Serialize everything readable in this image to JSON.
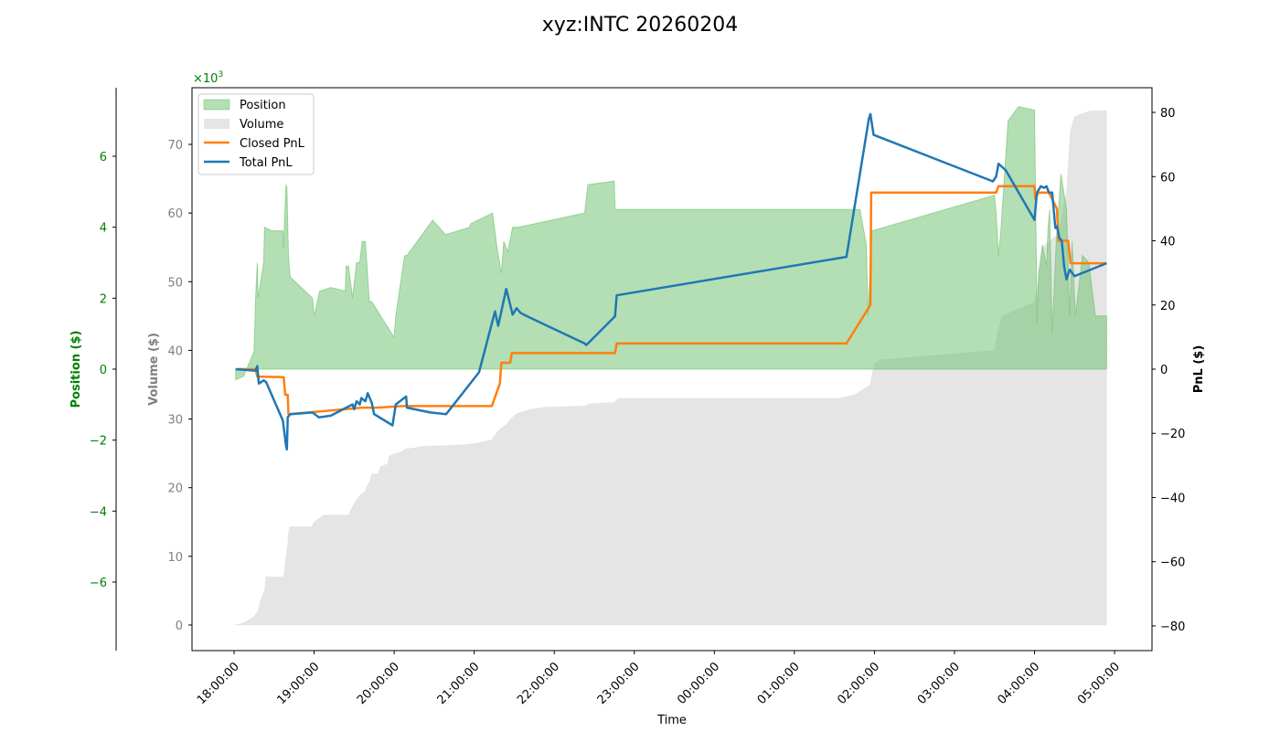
{
  "chart_data": {
    "type": "area+line",
    "title": "xyz:INTC 20260204",
    "xlabel": "Time",
    "x_ticks": [
      "18:00:00",
      "19:00:00",
      "20:00:00",
      "21:00:00",
      "22:00:00",
      "23:00:00",
      "00:00:00",
      "01:00:00",
      "02:00:00",
      "03:00:00",
      "04:00:00",
      "05:00:00"
    ],
    "x_unit": "hours since 18:00:00",
    "x_range": [
      -0.52,
      11.45
    ],
    "axes": {
      "position": {
        "label": "Position ($)",
        "color": "#008000",
        "ticks": [
          -6,
          -4,
          -2,
          0,
          2,
          4,
          6
        ],
        "tick_labels": [
          "−6",
          "−4",
          "−2",
          "0",
          "2",
          "4",
          "6"
        ],
        "range": [
          -7.85,
          7.85
        ],
        "multiplier": "×10³"
      },
      "volume": {
        "label": "Volume ($)",
        "color": "#808080",
        "ticks": [
          0,
          10,
          20,
          30,
          40,
          50,
          60,
          70
        ],
        "range": [
          -3.7,
          78.3
        ],
        "unit": "thousands"
      },
      "pnl": {
        "label": "PnL ($)",
        "color": "#000000",
        "ticks": [
          -80,
          -60,
          -40,
          -20,
          0,
          20,
          40,
          60,
          80
        ],
        "tick_labels": [
          "−80",
          "−60",
          "−40",
          "−20",
          "0",
          "20",
          "40",
          "60",
          "80"
        ],
        "range": [
          -87.7,
          87.7
        ]
      }
    },
    "legend": [
      {
        "label": "Position",
        "kind": "area",
        "color": "#6abf69"
      },
      {
        "label": "Volume",
        "kind": "area",
        "color": "#d3d3d3"
      },
      {
        "label": "Closed PnL",
        "kind": "line",
        "color": "#ff7f0e"
      },
      {
        "label": "Total PnL",
        "kind": "line",
        "color": "#1f77b4"
      }
    ],
    "series": [
      {
        "name": "Volume",
        "axis": "volume",
        "type": "area",
        "color": "#d3d3d3",
        "x": [
          0.02,
          0.07,
          0.15,
          0.25,
          0.3,
          0.33,
          0.38,
          0.4,
          0.62,
          0.64,
          0.67,
          0.68,
          0.7,
          0.97,
          1.0,
          1.12,
          1.43,
          1.47,
          1.52,
          1.58,
          1.64,
          1.66,
          1.7,
          1.72,
          1.8,
          1.83,
          1.92,
          1.94,
          2.02,
          2.1,
          2.13,
          2.27,
          2.33,
          2.52,
          2.6,
          2.93,
          3.05,
          3.22,
          3.28,
          3.32,
          3.4,
          3.46,
          3.53,
          3.59,
          3.7,
          3.8,
          3.88,
          4.4,
          4.43,
          4.75,
          4.8,
          5.3,
          5.55,
          5.8,
          6.2,
          6.6,
          7.2,
          7.55,
          7.75,
          7.95,
          7.97,
          8.0,
          8.06,
          9.0,
          9.5,
          9.55,
          9.6,
          10.0,
          10.05,
          10.1,
          10.3,
          10.4,
          10.42,
          10.45,
          10.5,
          10.6,
          10.7,
          10.9
        ],
        "y": [
          0.1,
          0.1,
          0.5,
          1.2,
          2.1,
          3.5,
          5.0,
          7.0,
          7.0,
          9.0,
          11.8,
          13.5,
          14.3,
          14.3,
          15.0,
          16.0,
          16.0,
          17.0,
          18.0,
          19.0,
          19.5,
          20.2,
          21.0,
          22.0,
          22.0,
          23.0,
          23.5,
          24.6,
          25.0,
          25.2,
          25.6,
          25.8,
          26.0,
          26.1,
          26.1,
          26.3,
          26.5,
          27.0,
          28.0,
          28.5,
          29.2,
          30.0,
          30.8,
          31.0,
          31.4,
          31.6,
          31.7,
          31.9,
          32.2,
          32.4,
          33.0,
          33.0,
          33.0,
          33.0,
          33.0,
          33.0,
          33.0,
          33.0,
          33.5,
          35.0,
          36.5,
          38.0,
          38.6,
          39.5,
          40.0,
          43.0,
          45.0,
          47.0,
          50.0,
          55.0,
          57.0,
          63.0,
          67.0,
          72.0,
          74.0,
          74.5,
          74.9,
          74.9
        ]
      },
      {
        "name": "Position",
        "axis": "position",
        "type": "area",
        "color": "#6abf69",
        "x": [
          0.02,
          0.12,
          0.25,
          0.27,
          0.29,
          0.3,
          0.37,
          0.38,
          0.47,
          0.61,
          0.62,
          0.63,
          0.65,
          0.66,
          0.68,
          0.7,
          0.98,
          1.0,
          1.07,
          1.21,
          1.39,
          1.4,
          1.43,
          1.48,
          1.53,
          1.57,
          1.6,
          1.64,
          1.69,
          1.72,
          2.0,
          2.02,
          2.13,
          2.16,
          2.48,
          2.64,
          2.66,
          2.94,
          2.96,
          3.23,
          3.28,
          3.34,
          3.37,
          3.42,
          3.48,
          3.55,
          4.38,
          4.42,
          4.75,
          4.76,
          5.4,
          6.5,
          7.65,
          7.82,
          7.9,
          7.92,
          7.97,
          9.5,
          9.52,
          9.55,
          9.58,
          9.64,
          9.67,
          9.8,
          10.0,
          10.02,
          10.03,
          10.05,
          10.1,
          10.15,
          10.17,
          10.19,
          10.22,
          10.27,
          10.33,
          10.4,
          10.44,
          10.47,
          10.51,
          10.6,
          10.68,
          10.76,
          10.9
        ],
        "y": [
          -0.3,
          -0.2,
          0.5,
          2.0,
          3.0,
          2.0,
          3.0,
          4.0,
          3.9,
          3.9,
          3.4,
          4.2,
          5.2,
          5.1,
          3.2,
          2.6,
          2.0,
          1.5,
          2.2,
          2.3,
          2.2,
          2.9,
          2.9,
          2.0,
          3.0,
          3.0,
          3.6,
          3.6,
          1.9,
          1.9,
          0.9,
          1.5,
          3.2,
          3.2,
          4.2,
          3.8,
          3.8,
          4.0,
          4.1,
          4.4,
          3.5,
          2.7,
          3.6,
          3.3,
          4.0,
          4.0,
          4.4,
          5.2,
          5.3,
          4.5,
          4.5,
          4.5,
          4.5,
          4.5,
          3.5,
          1.5,
          3.9,
          4.9,
          4.4,
          3.2,
          3.9,
          6.0,
          7.0,
          7.4,
          7.3,
          3.5,
          1.3,
          2.7,
          3.5,
          2.9,
          4.0,
          4.5,
          1.0,
          3.5,
          5.5,
          4.5,
          1.5,
          3.6,
          1.5,
          3.2,
          3.0,
          1.5,
          1.5
        ]
      },
      {
        "name": "Closed PnL",
        "axis": "pnl",
        "type": "line",
        "color": "#ff7f0e",
        "x": [
          0.02,
          0.27,
          0.29,
          0.62,
          0.64,
          0.67,
          0.68,
          0.7,
          1.6,
          1.65,
          1.7,
          1.75,
          1.8,
          2.1,
          2.2,
          3.22,
          3.32,
          3.34,
          3.45,
          3.47,
          4.42,
          4.76,
          4.78,
          7.65,
          7.95,
          7.96,
          9.52,
          9.55,
          10.0,
          10.01,
          10.05,
          10.18,
          10.22,
          10.28,
          10.3,
          10.42,
          10.45,
          10.5,
          10.9
        ],
        "y": [
          0,
          0,
          -2.3,
          -2.5,
          -8.0,
          -8.0,
          -14.0,
          -14.0,
          -12.0,
          -12.0,
          -12.0,
          -12.0,
          -12.0,
          -11.5,
          -11.5,
          -11.5,
          -4.5,
          2.0,
          2.0,
          5.0,
          5.0,
          5.0,
          8.0,
          8.0,
          20.0,
          55.0,
          55.0,
          57.0,
          57.0,
          53.0,
          55.0,
          55.0,
          53.0,
          50.0,
          40.0,
          40.0,
          33.0,
          33.0,
          33.0
        ]
      },
      {
        "name": "Total PnL",
        "axis": "pnl",
        "type": "line",
        "color": "#1f77b4",
        "x": [
          0.02,
          0.27,
          0.29,
          0.31,
          0.37,
          0.4,
          0.61,
          0.65,
          0.66,
          0.67,
          0.7,
          0.98,
          1.06,
          1.21,
          1.48,
          1.5,
          1.53,
          1.57,
          1.59,
          1.64,
          1.67,
          1.72,
          1.75,
          1.98,
          2.02,
          2.15,
          2.16,
          2.45,
          2.65,
          3.06,
          3.26,
          3.3,
          3.4,
          3.48,
          3.53,
          3.58,
          3.7,
          4.38,
          4.4,
          4.76,
          4.78,
          7.65,
          7.93,
          7.95,
          7.99,
          9.48,
          9.52,
          9.55,
          9.64,
          10.0,
          10.03,
          10.08,
          10.12,
          10.15,
          10.18,
          10.22,
          10.26,
          10.28,
          10.31,
          10.34,
          10.37,
          10.4,
          10.44,
          10.5,
          10.9
        ],
        "y": [
          0,
          -0.5,
          1.0,
          -4.5,
          -3.5,
          -4.0,
          -16.0,
          -24.0,
          -25.0,
          -15.0,
          -14.0,
          -13.5,
          -15.0,
          -14.5,
          -11.0,
          -12.5,
          -10.0,
          -11.0,
          -9.0,
          -10.0,
          -7.5,
          -10.5,
          -14.0,
          -17.5,
          -11.0,
          -8.5,
          -12.0,
          -13.5,
          -14.0,
          -1.0,
          18.0,
          13.5,
          25.0,
          17.0,
          19.0,
          17.5,
          16.0,
          8.0,
          7.5,
          16.5,
          23.0,
          35.0,
          78.0,
          79.5,
          73.0,
          58.5,
          60.0,
          64.0,
          62.0,
          46.5,
          55.0,
          57.0,
          56.5,
          57.0,
          55.0,
          55.0,
          44.0,
          44.5,
          41.0,
          40.0,
          32.0,
          28.0,
          31.0,
          29.0,
          33.0
        ]
      }
    ]
  }
}
